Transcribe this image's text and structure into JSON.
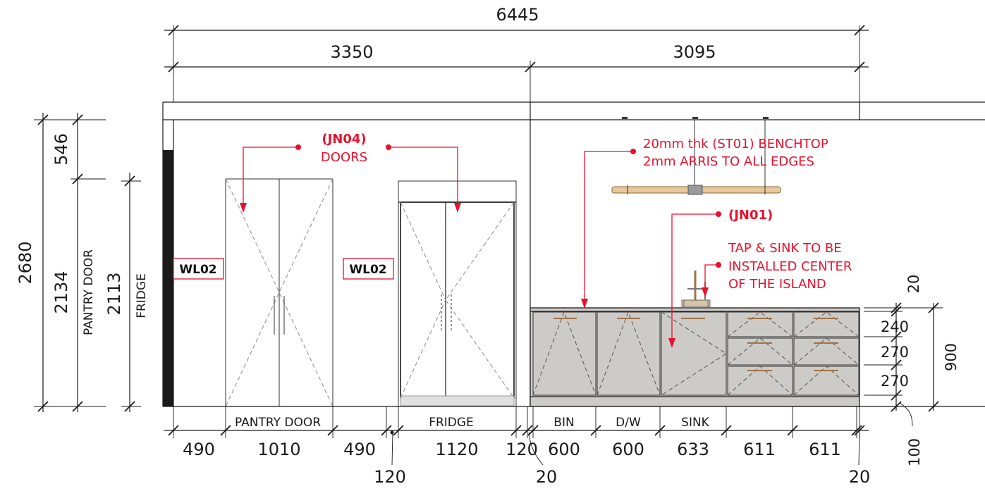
{
  "dimensions": {
    "overall": "6445",
    "left_section": "3350",
    "right_section": "3095",
    "height_total": "2680",
    "height_top": "546",
    "pantry_door_height": "2134",
    "fridge_height": "2113",
    "bottom": [
      "490",
      "1010",
      "490",
      "120",
      "1120",
      "120",
      "600",
      "600",
      "633",
      "611",
      "611"
    ],
    "bottom_small": [
      "120",
      "20",
      "20"
    ],
    "drawers": [
      "20",
      "240",
      "270",
      "270"
    ],
    "island_height": "900",
    "kick": "100"
  },
  "labels": {
    "pantry_door_vertical": "PANTRY DOOR",
    "fridge_vertical": "FRIDGE",
    "pantry_door": "PANTRY DOOR",
    "fridge": "FRIDGE",
    "bin": "BIN",
    "dw": "D/W",
    "sink": "SINK"
  },
  "tags": {
    "wall_left": "WL02",
    "wall_mid": "WL02"
  },
  "notes": {
    "doors_code": "(JN04)",
    "doors_text": "DOORS",
    "benchtop_line1": "20mm thk (ST01) BENCHTOP",
    "benchtop_line2": "2mm ARRIS TO ALL EDGES",
    "island_code": "(JN01)",
    "tap_line1": "TAP & SINK TO BE",
    "tap_line2": "INSTALLED CENTER",
    "tap_line3": "OF THE ISLAND"
  },
  "colors": {
    "annotation": "#e8112d",
    "cabinet_fill": "#cdcbc7",
    "pendant": "#e8c79a",
    "wall_panel": "#1a1a1a"
  }
}
